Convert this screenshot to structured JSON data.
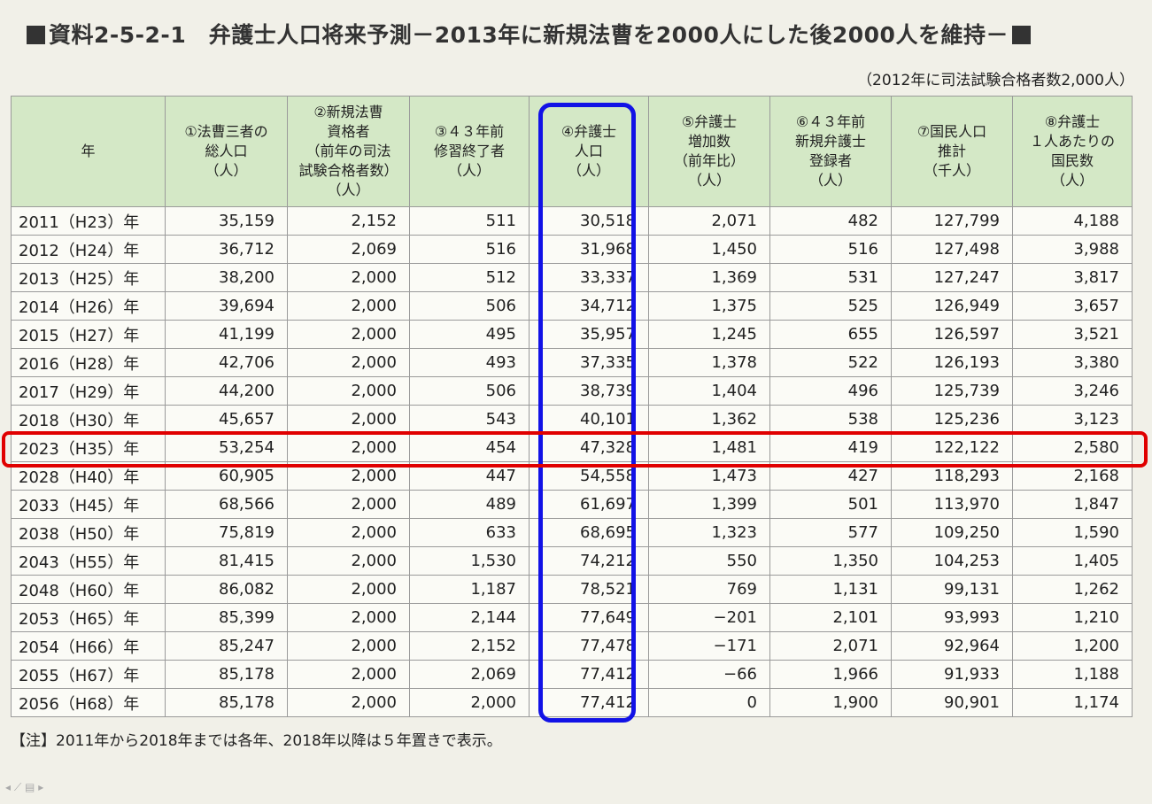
{
  "title": "資料2-5-2-1　弁護士人口将来予測－2013年に新規法曹を2000人にした後2000人を維持－",
  "subtitle": "（2012年に司法試験合格者数2,000人）",
  "note": "【注】2011年から2018年までは各年、2018年以降は５年置きで表示。",
  "table": {
    "headers": [
      [
        "年"
      ],
      [
        "①法曹三者の",
        "総人口",
        "（人）"
      ],
      [
        "②新規法曹",
        "資格者",
        "（前年の司法",
        "試験合格者数）",
        "（人）"
      ],
      [
        "③４３年前",
        "修習終了者",
        "（人）"
      ],
      [
        "④弁護士",
        "人口",
        "（人）"
      ],
      [
        "⑤弁護士",
        "増加数",
        "（前年比）",
        "（人）"
      ],
      [
        "⑥４３年前",
        "新規弁護士",
        "登録者",
        "（人）"
      ],
      [
        "⑦国民人口",
        "推計",
        "（千人）"
      ],
      [
        "⑧弁護士",
        "１人あたりの",
        "国民数",
        "（人）"
      ]
    ],
    "rows": [
      [
        "2011（H23）年",
        "35,159",
        "2,152",
        "511",
        "30,518",
        "2,071",
        "482",
        "127,799",
        "4,188"
      ],
      [
        "2012（H24）年",
        "36,712",
        "2,069",
        "516",
        "31,968",
        "1,450",
        "516",
        "127,498",
        "3,988"
      ],
      [
        "2013（H25）年",
        "38,200",
        "2,000",
        "512",
        "33,337",
        "1,369",
        "531",
        "127,247",
        "3,817"
      ],
      [
        "2014（H26）年",
        "39,694",
        "2,000",
        "506",
        "34,712",
        "1,375",
        "525",
        "126,949",
        "3,657"
      ],
      [
        "2015（H27）年",
        "41,199",
        "2,000",
        "495",
        "35,957",
        "1,245",
        "655",
        "126,597",
        "3,521"
      ],
      [
        "2016（H28）年",
        "42,706",
        "2,000",
        "493",
        "37,335",
        "1,378",
        "522",
        "126,193",
        "3,380"
      ],
      [
        "2017（H29）年",
        "44,200",
        "2,000",
        "506",
        "38,739",
        "1,404",
        "496",
        "125,739",
        "3,246"
      ],
      [
        "2018（H30）年",
        "45,657",
        "2,000",
        "543",
        "40,101",
        "1,362",
        "538",
        "125,236",
        "3,123"
      ],
      [
        "2023（H35）年",
        "53,254",
        "2,000",
        "454",
        "47,328",
        "1,481",
        "419",
        "122,122",
        "2,580"
      ],
      [
        "2028（H40）年",
        "60,905",
        "2,000",
        "447",
        "54,558",
        "1,473",
        "427",
        "118,293",
        "2,168"
      ],
      [
        "2033（H45）年",
        "68,566",
        "2,000",
        "489",
        "61,697",
        "1,399",
        "501",
        "113,970",
        "1,847"
      ],
      [
        "2038（H50）年",
        "75,819",
        "2,000",
        "633",
        "68,695",
        "1,323",
        "577",
        "109,250",
        "1,590"
      ],
      [
        "2043（H55）年",
        "81,415",
        "2,000",
        "1,530",
        "74,212",
        "550",
        "1,350",
        "104,253",
        "1,405"
      ],
      [
        "2048（H60）年",
        "86,082",
        "2,000",
        "1,187",
        "78,521",
        "769",
        "1,131",
        "99,131",
        "1,262"
      ],
      [
        "2053（H65）年",
        "85,399",
        "2,000",
        "2,144",
        "77,649",
        "−201",
        "2,101",
        "93,993",
        "1,210"
      ],
      [
        "2054（H66）年",
        "85,247",
        "2,000",
        "2,152",
        "77,478",
        "−171",
        "2,071",
        "92,964",
        "1,200"
      ],
      [
        "2055（H67）年",
        "85,178",
        "2,000",
        "2,069",
        "77,412",
        "−66",
        "1,966",
        "91,933",
        "1,188"
      ],
      [
        "2056（H68）年",
        "85,178",
        "2,000",
        "2,000",
        "77,412",
        "0",
        "1,900",
        "90,901",
        "1,174"
      ]
    ]
  },
  "highlights": {
    "column_color": "#1212e6",
    "row_color": "#e00000"
  }
}
